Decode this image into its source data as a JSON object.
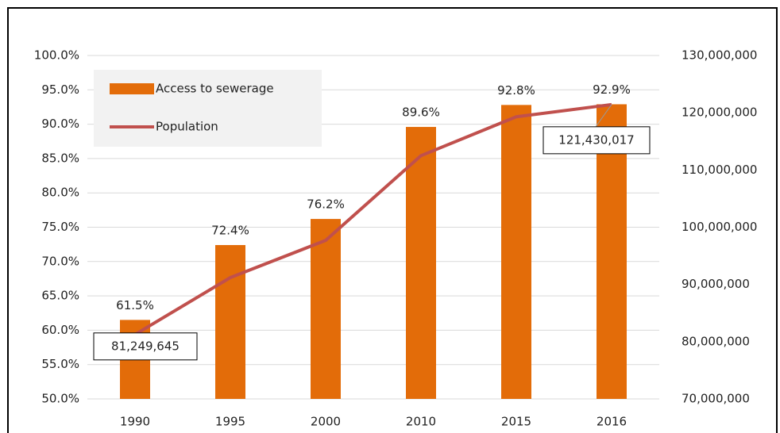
{
  "chart_data": {
    "type": "bar-line",
    "categories": [
      "1990",
      "1995",
      "2000",
      "2010",
      "2015",
      "2016"
    ],
    "series": [
      {
        "name": "Access to sewerage",
        "type": "bar",
        "color": "#e36c09",
        "values": [
          61.5,
          72.4,
          76.2,
          89.6,
          92.8,
          92.9
        ],
        "value_labels": [
          "61.5%",
          "72.4%",
          "76.2%",
          "89.6%",
          "92.8%",
          "92.9%"
        ]
      },
      {
        "name": "Population",
        "type": "line",
        "axis": "y2",
        "color": "#c0504d",
        "values": [
          81249645,
          91200000,
          97700000,
          112500000,
          119300000,
          121430017
        ],
        "value_labels": [
          "81,249,645",
          null,
          null,
          null,
          null,
          "121,430,017"
        ]
      }
    ],
    "ylim": [
      50,
      100
    ],
    "yticks": [
      {
        "value": 50,
        "label": "50.0%"
      },
      {
        "value": 55,
        "label": "55.0%"
      },
      {
        "value": 60,
        "label": "60.0%"
      },
      {
        "value": 65,
        "label": "65.0%"
      },
      {
        "value": 70,
        "label": "70.0%"
      },
      {
        "value": 75,
        "label": "75.0%"
      },
      {
        "value": 80,
        "label": "80.0%"
      },
      {
        "value": 85,
        "label": "85.0%"
      },
      {
        "value": 90,
        "label": "90.0%"
      },
      {
        "value": 95,
        "label": "95.0%"
      },
      {
        "value": 100,
        "label": "100.0%"
      }
    ],
    "y2lim": [
      70000000,
      130000000
    ],
    "y2ticks": [
      {
        "value": 70000000,
        "label": "70,000,000"
      },
      {
        "value": 80000000,
        "label": "80,000,000"
      },
      {
        "value": 90000000,
        "label": "90,000,000"
      },
      {
        "value": 100000000,
        "label": "100,000,000"
      },
      {
        "value": 110000000,
        "label": "110,000,000"
      },
      {
        "value": 120000000,
        "label": "120,000,000"
      },
      {
        "value": 130000000,
        "label": "130,000,000"
      }
    ],
    "grid": true,
    "legend": "upper left"
  }
}
